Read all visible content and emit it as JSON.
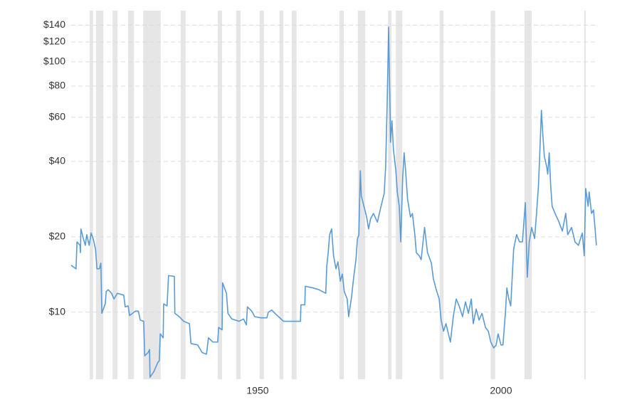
{
  "chart_data": {
    "type": "line",
    "log_scale": true,
    "grid": true,
    "xlim": [
      1911.7,
      2019.6
    ],
    "ylim": [
      5.4,
      160
    ],
    "xticks": [
      1950,
      2000
    ],
    "yticks": [
      {
        "value": 10,
        "label": "$10"
      },
      {
        "value": 20,
        "label": "$20"
      },
      {
        "value": 40,
        "label": "$40"
      },
      {
        "value": 60,
        "label": "$60"
      },
      {
        "value": 80,
        "label": "$80"
      },
      {
        "value": 100,
        "label": "$100"
      },
      {
        "value": 120,
        "label": "$120"
      },
      {
        "value": 140,
        "label": "$140"
      }
    ],
    "shade_color": "#e6e6e6",
    "shaded_ranges": [
      [
        1915.5,
        1916.2
      ],
      [
        1916.8,
        1918.3
      ],
      [
        1920.2,
        1921.2
      ],
      [
        1923.4,
        1924.6
      ],
      [
        1926.5,
        1930.1
      ],
      [
        1934.2,
        1935.2
      ],
      [
        1941.8,
        1942.7
      ],
      [
        1945.6,
        1946.5
      ],
      [
        1950.4,
        1951.3
      ],
      [
        1954.5,
        1955.3
      ],
      [
        1957.0,
        1958.0
      ],
      [
        1966.8,
        1967.7
      ],
      [
        1970.6,
        1972.1
      ],
      [
        1976.8,
        1977.5
      ],
      [
        1978.4,
        1979.7
      ],
      [
        1987.4,
        1988.2
      ],
      [
        1997.9,
        1998.8
      ],
      [
        2004.8,
        2006.3
      ],
      [
        2017.1,
        2017.4
      ]
    ],
    "series": [
      {
        "color": "#5b9bd5",
        "x": [
          1911.7,
          1912.7,
          1912.9,
          1913.5,
          1913.6,
          1913.7,
          1914.2,
          1914.6,
          1914.9,
          1915.4,
          1915.8,
          1916.2,
          1916.7,
          1917.0,
          1917.5,
          1917.8,
          1918.0,
          1918.7,
          1918.9,
          1919.3,
          1920.0,
          1920.5,
          1921.2,
          1922.5,
          1922.8,
          1923.4,
          1923.7,
          1924.9,
          1925.5,
          1925.9,
          1926.6,
          1926.8,
          1927.5,
          1927.8,
          1927.9,
          1928.7,
          1929.5,
          1929.8,
          1930.0,
          1930.6,
          1930.7,
          1931.4,
          1931.7,
          1932.9,
          1933.0,
          1933.9,
          1934.8,
          1936.0,
          1936.3,
          1937.7,
          1938.6,
          1939.5,
          1939.9,
          1940.8,
          1941.8,
          1942.0,
          1942.7,
          1942.8,
          1943.6,
          1943.9,
          1944.7,
          1946.2,
          1947.1,
          1947.7,
          1947.9,
          1948.8,
          1949.4,
          1950.6,
          1951.9,
          1952.2,
          1952.9,
          1953.8,
          1954.8,
          1955.3,
          1957.0,
          1958.8,
          1958.9,
          1959.7,
          1959.8,
          1961.4,
          1962.6,
          1964.0,
          1964.2,
          1964.5,
          1964.8,
          1965.2,
          1965.6,
          1966.1,
          1966.5,
          1967.0,
          1967.4,
          1967.8,
          1968.4,
          1968.7,
          1969.3,
          1969.7,
          1970.2,
          1970.5,
          1970.8,
          1971.1,
          1971.3,
          1971.9,
          1972.4,
          1972.8,
          1973.2,
          1973.8,
          1974.6,
          1975.3,
          1976.0,
          1976.3,
          1976.6,
          1976.8,
          1976.9,
          1977.2,
          1977.3,
          1977.6,
          1977.9,
          1978.4,
          1978.7,
          1979.1,
          1979.4,
          1979.8,
          1980.1,
          1980.4,
          1980.8,
          1981.4,
          1981.8,
          1982.3,
          1982.6,
          1983.2,
          1983.6,
          1983.9,
          1984.3,
          1984.9,
          1985.7,
          1986.1,
          1986.7,
          1987.3,
          1987.7,
          1988.2,
          1988.7,
          1989.2,
          1989.6,
          1990.2,
          1990.8,
          1991.4,
          1992.1,
          1992.7,
          1993.3,
          1993.9,
          1994.3,
          1994.9,
          1995.5,
          1996.1,
          1996.8,
          1997.4,
          1997.9,
          1998.5,
          1999.0,
          1999.4,
          2000.0,
          2000.4,
          2000.9,
          2001.2,
          2001.6,
          2002.0,
          2002.6,
          2003.2,
          2003.8,
          2004.4,
          2005.0,
          2005.4,
          2005.8,
          2006.3,
          2006.9,
          2007.3,
          2007.7,
          2008.0,
          2008.3,
          2008.6,
          2008.9,
          2009.4,
          2009.6,
          2009.9,
          2010.2,
          2010.5,
          2011.1,
          2011.8,
          2012.6,
          2013.3,
          2013.7,
          2014.5,
          2015.2,
          2015.9,
          2016.7,
          2017.1,
          2017.4,
          2017.9,
          2018.1,
          2018.6,
          2019.0,
          2019.3,
          2019.6
        ],
        "values": [
          15.4,
          14.9,
          19.1,
          18.5,
          17.3,
          21.5,
          19.7,
          18.5,
          20.4,
          18.5,
          20.7,
          19.7,
          17.9,
          14.9,
          14.9,
          15.7,
          9.9,
          10.8,
          12.1,
          12.3,
          11.9,
          11.3,
          11.9,
          11.7,
          10.5,
          10.6,
          9.7,
          10.1,
          10.1,
          9.3,
          9.2,
          6.7,
          6.9,
          7.1,
          5.5,
          5.8,
          6.3,
          6.4,
          8.2,
          7.9,
          10.8,
          10.6,
          14.0,
          13.9,
          9.9,
          9.6,
          9.2,
          9.0,
          7.5,
          7.4,
          6.9,
          6.8,
          7.9,
          7.6,
          7.6,
          8.7,
          8.5,
          13.1,
          11.9,
          9.9,
          9.4,
          9.2,
          9.4,
          8.9,
          10.5,
          10.1,
          9.6,
          9.5,
          9.5,
          10.0,
          10.2,
          9.8,
          9.4,
          9.2,
          9.2,
          9.2,
          10.7,
          10.7,
          12.7,
          12.5,
          12.3,
          11.9,
          15.2,
          17.3,
          20.4,
          21.5,
          16.8,
          14.9,
          15.9,
          13.3,
          14.2,
          12.1,
          11.3,
          9.6,
          11.5,
          13.6,
          16.2,
          19.6,
          20.4,
          36.7,
          29.2,
          26.2,
          24.0,
          21.5,
          23.6,
          24.8,
          22.9,
          26.2,
          29.8,
          38.0,
          66.2,
          104.6,
          137.7,
          66.2,
          47.7,
          58.1,
          44.7,
          36.7,
          30.2,
          26.5,
          19.1,
          34.4,
          43.3,
          36.7,
          28.3,
          24.0,
          24.8,
          20.4,
          17.3,
          16.8,
          16.2,
          18.5,
          21.8,
          17.3,
          15.7,
          13.6,
          12.3,
          11.3,
          9.3,
          8.4,
          9.0,
          8.2,
          7.6,
          9.6,
          11.3,
          10.6,
          9.6,
          11.0,
          9.9,
          11.3,
          9.0,
          10.3,
          9.3,
          9.9,
          8.7,
          8.4,
          7.6,
          7.2,
          7.4,
          8.2,
          7.4,
          7.4,
          9.9,
          12.5,
          11.3,
          10.6,
          17.9,
          20.4,
          19.1,
          19.1,
          27.4,
          13.8,
          19.1,
          21.8,
          19.7,
          24.8,
          32.2,
          44.7,
          64.0,
          51.0,
          41.9,
          38.0,
          35.6,
          43.3,
          32.2,
          26.5,
          24.8,
          23.2,
          21.1,
          24.8,
          20.4,
          21.8,
          19.1,
          18.5,
          20.7,
          16.8,
          31.2,
          26.5,
          30.2,
          24.8,
          25.6,
          21.8,
          18.5
        ]
      }
    ]
  }
}
